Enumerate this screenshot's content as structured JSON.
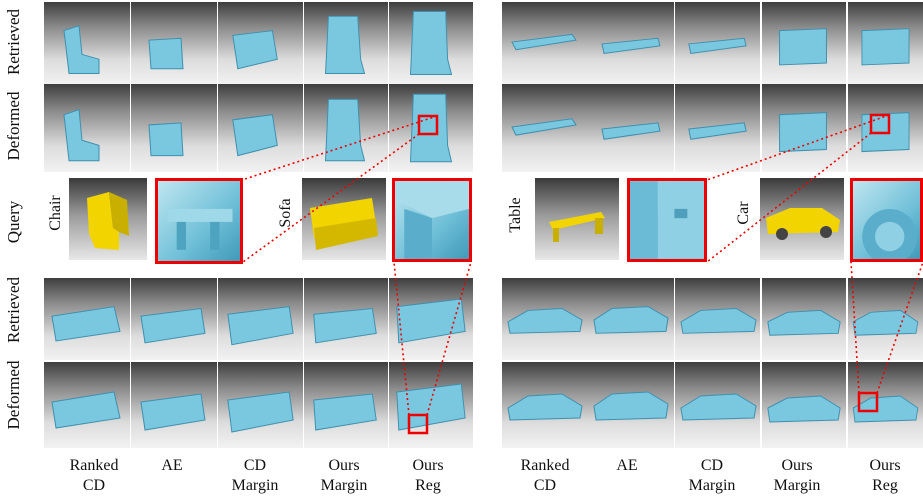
{
  "row_labels_left": [
    "Retrieved",
    "Deformed",
    "Query",
    "Retrieved",
    "Deformed"
  ],
  "query_labels": [
    "Chair",
    "Sofa",
    "Table",
    "Car"
  ],
  "column_labels": [
    [
      "Ranked",
      "CD"
    ],
    [
      "AE",
      ""
    ],
    [
      "CD",
      "Margin"
    ],
    [
      "Ours",
      "Margin"
    ],
    [
      "Ours",
      "Reg"
    ]
  ],
  "colors": {
    "shape": "#79c8e0",
    "query_shape": "#f2d400",
    "highlight": "#e00000"
  }
}
